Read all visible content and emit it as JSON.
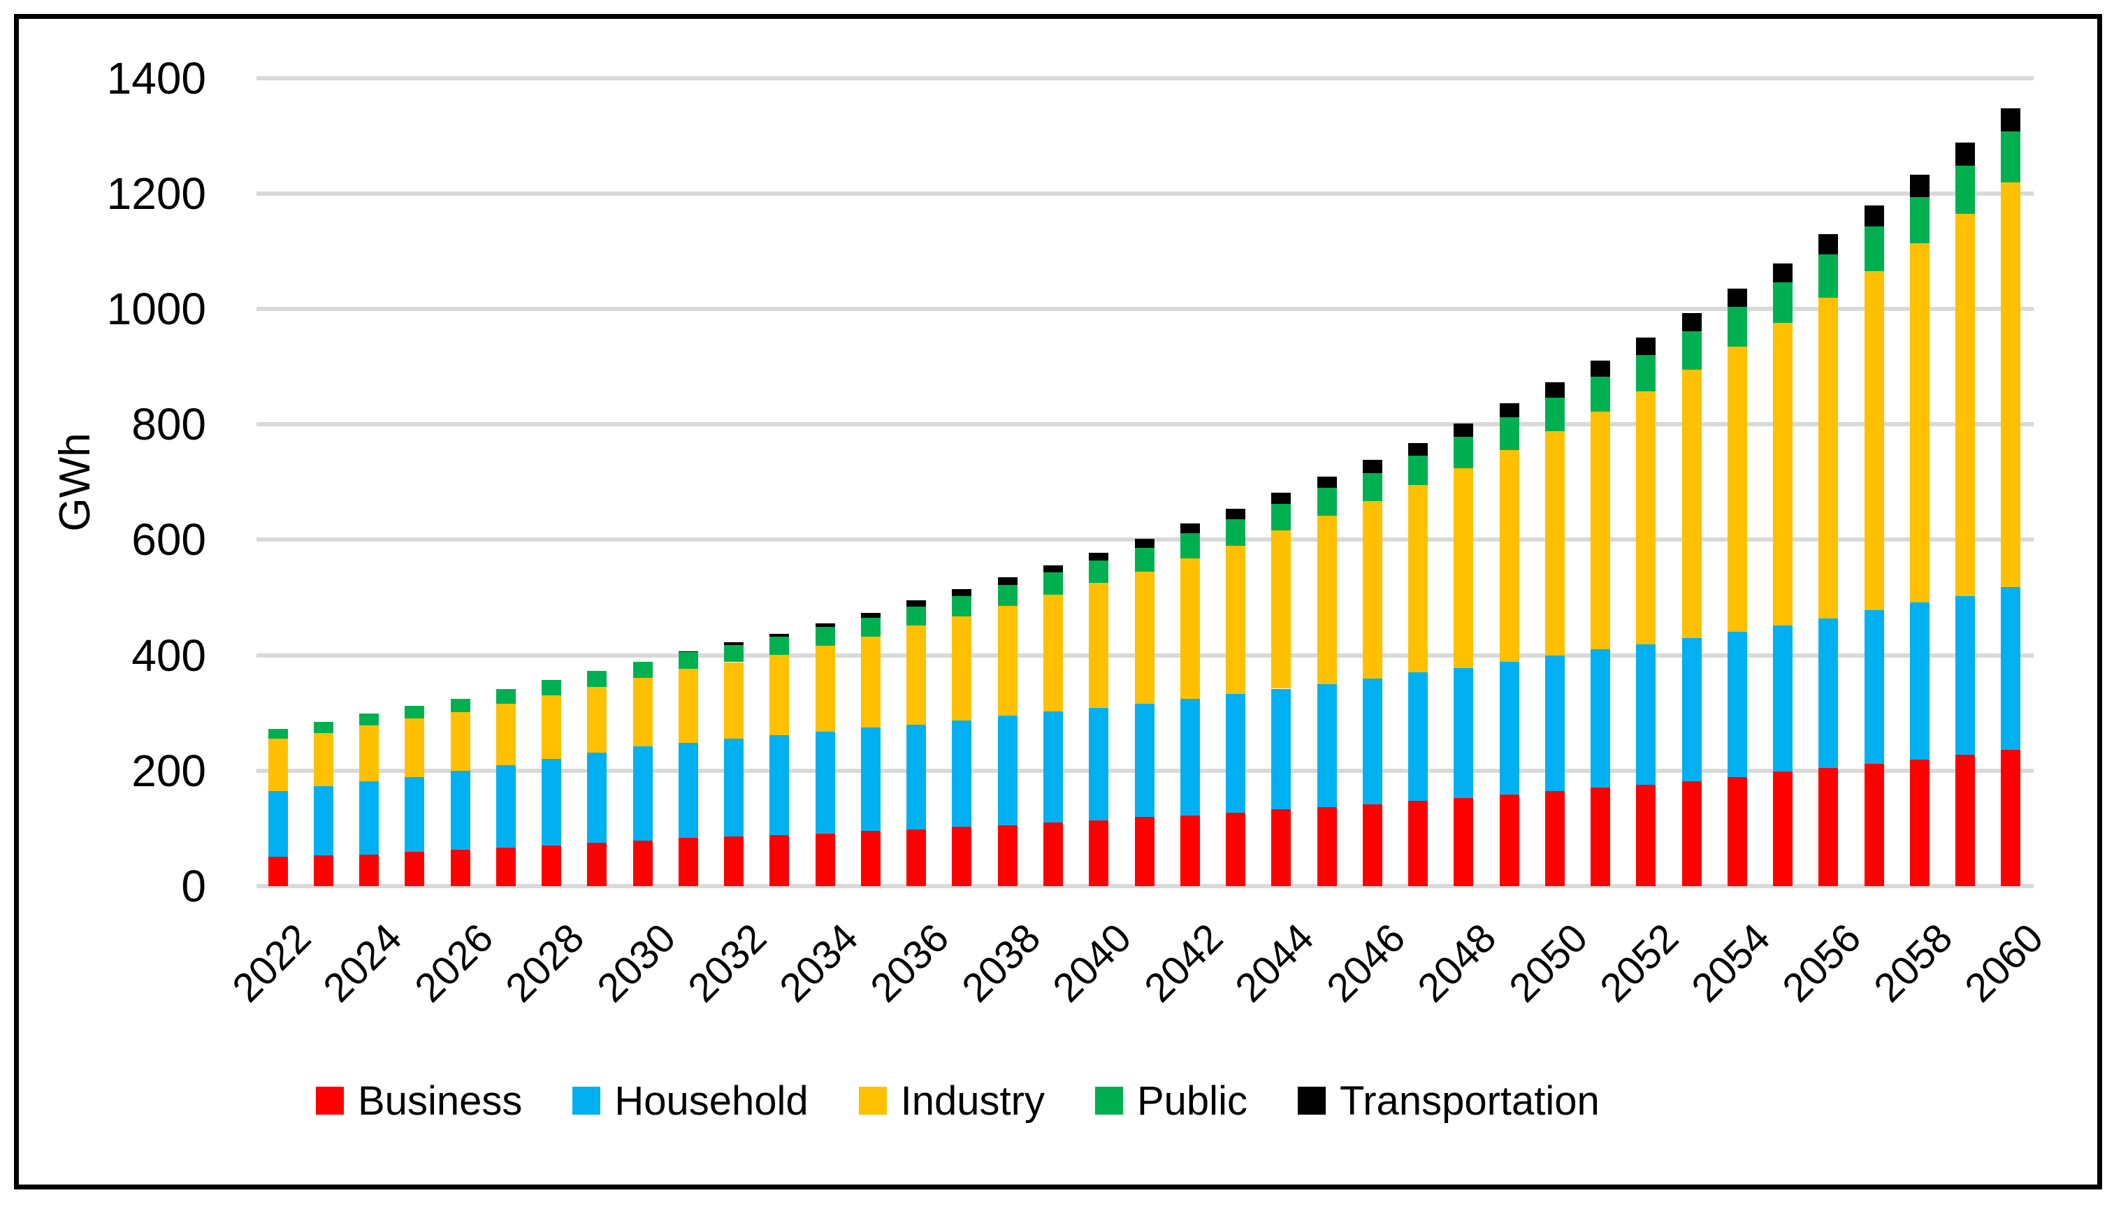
{
  "chart_data": {
    "type": "bar",
    "stacked": true,
    "title": "",
    "xlabel": "",
    "ylabel": "GWh",
    "ylim": [
      0,
      1400
    ],
    "ytick_step": 200,
    "ytick_labels": [
      "0",
      "200",
      "400",
      "600",
      "800",
      "1000",
      "1200",
      "1400"
    ],
    "grid": "horizontal",
    "gridline_color": "#D9D9D9",
    "background_color": "#FFFFFF",
    "border_color": "#000000",
    "legend_position": "bottom",
    "categories": [
      2022,
      2023,
      2024,
      2025,
      2026,
      2027,
      2028,
      2029,
      2030,
      2031,
      2032,
      2033,
      2034,
      2035,
      2036,
      2037,
      2038,
      2039,
      2040,
      2041,
      2042,
      2043,
      2044,
      2045,
      2046,
      2047,
      2048,
      2049,
      2050,
      2051,
      2052,
      2053,
      2054,
      2055,
      2056,
      2057,
      2058,
      2059,
      2060
    ],
    "xtick_labels": [
      "2022",
      "2024",
      "2026",
      "2028",
      "2030",
      "2032",
      "2034",
      "2036",
      "2038",
      "2040",
      "2042",
      "2044",
      "2046",
      "2048",
      "2050",
      "2052",
      "2054",
      "2056",
      "2058",
      "2060"
    ],
    "series": [
      {
        "name": "Business",
        "color": "#FF0000",
        "values": [
          51,
          53,
          55,
          59,
          63,
          66,
          70,
          75,
          79,
          83,
          86,
          88,
          91,
          96,
          98,
          103,
          105,
          110,
          114,
          120,
          122,
          127,
          133,
          137,
          142,
          148,
          153,
          159,
          165,
          171,
          176,
          182,
          189,
          198,
          205,
          212,
          219,
          228,
          236
        ]
      },
      {
        "name": "Household",
        "color": "#00B0F0",
        "values": [
          114,
          120,
          126,
          130,
          137,
          144,
          150,
          156,
          163,
          165,
          169,
          173,
          176,
          179,
          182,
          184,
          190,
          193,
          195,
          196,
          203,
          206,
          209,
          213,
          218,
          222,
          225,
          230,
          235,
          240,
          243,
          248,
          252,
          254,
          259,
          266,
          272,
          275,
          282
        ]
      },
      {
        "name": "Industry",
        "color": "#FFC000",
        "values": [
          90,
          92,
          97,
          101,
          102,
          106,
          111,
          114,
          119,
          129,
          133,
          140,
          149,
          157,
          171,
          180,
          190,
          202,
          217,
          229,
          243,
          257,
          274,
          292,
          307,
          325,
          346,
          366,
          388,
          411,
          438,
          465,
          494,
          524,
          555,
          587,
          623,
          662,
          701
        ]
      },
      {
        "name": "Public",
        "color": "#00B050",
        "values": [
          17,
          19,
          21,
          22,
          23,
          25,
          26,
          28,
          28,
          28,
          30,
          31,
          33,
          33,
          33,
          35,
          37,
          38,
          38,
          41,
          43,
          45,
          46,
          48,
          49,
          51,
          54,
          57,
          58,
          60,
          63,
          66,
          69,
          70,
          76,
          78,
          80,
          83,
          89
        ]
      },
      {
        "name": "Transportation",
        "color": "#000000",
        "values": [
          0,
          0,
          0,
          0,
          0,
          0,
          0,
          0,
          0,
          2,
          4,
          5,
          6,
          8,
          11,
          12,
          13,
          13,
          13,
          16,
          17,
          19,
          19,
          19,
          23,
          22,
          23,
          24,
          27,
          28,
          30,
          32,
          31,
          33,
          35,
          36,
          39,
          40,
          39
        ]
      }
    ]
  }
}
